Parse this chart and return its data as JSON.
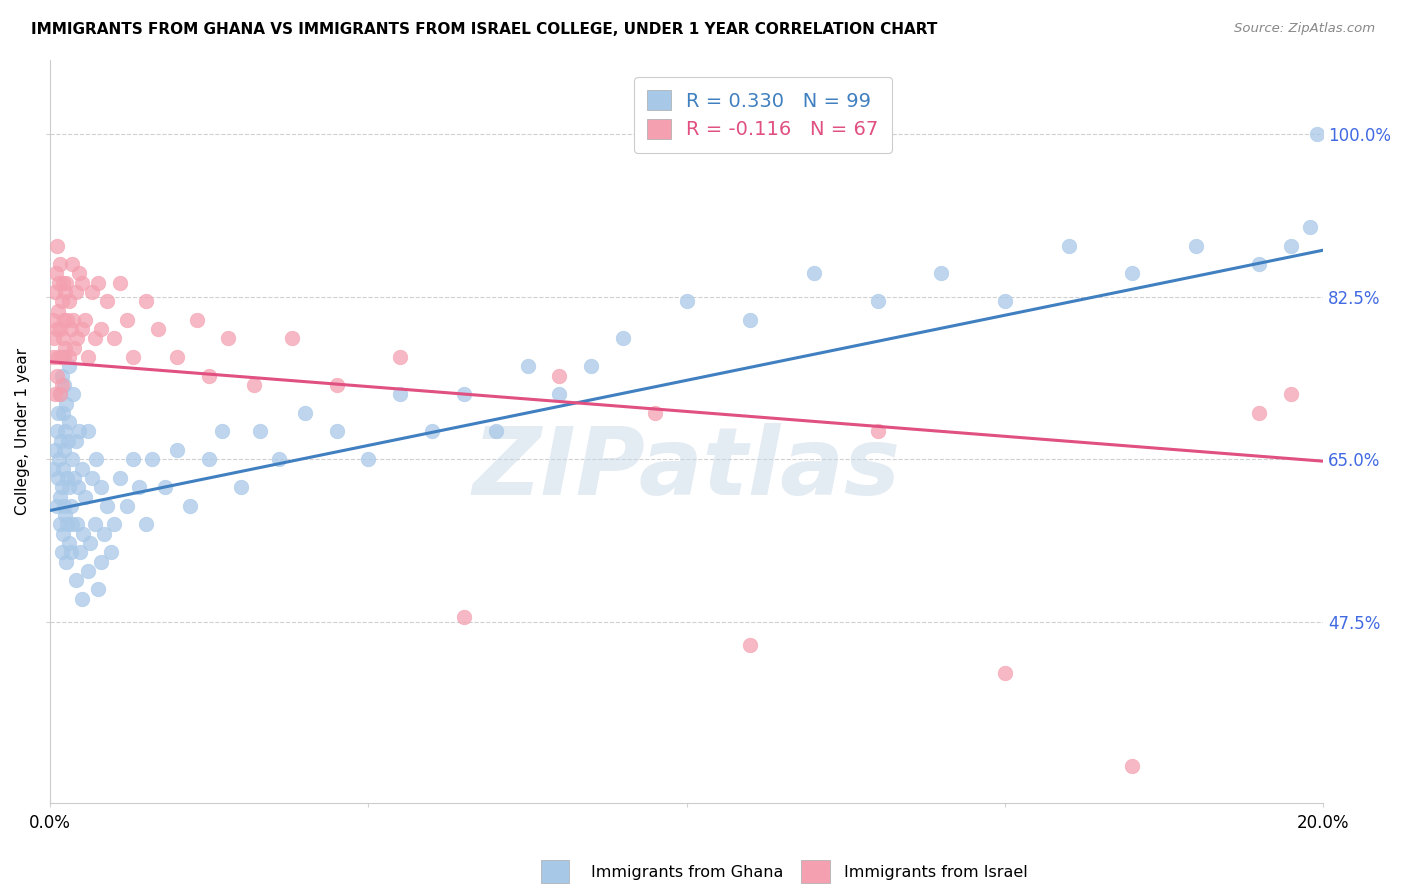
{
  "title": "IMMIGRANTS FROM GHANA VS IMMIGRANTS FROM ISRAEL COLLEGE, UNDER 1 YEAR CORRELATION CHART",
  "source": "Source: ZipAtlas.com",
  "ylabel": "College, Under 1 year",
  "xlim": [
    0.0,
    0.2
  ],
  "ylim": [
    0.28,
    1.08
  ],
  "ytick_values": [
    0.475,
    0.65,
    0.825,
    1.0
  ],
  "ytick_labels": [
    "47.5%",
    "65.0%",
    "82.5%",
    "100.0%"
  ],
  "ghana_color": "#a8c8e8",
  "israel_color": "#f4a0b0",
  "ghana_line_color": "#4080c0",
  "israel_line_color": "#e05080",
  "ghana_R": 0.33,
  "ghana_N": 99,
  "israel_R": -0.116,
  "israel_N": 67,
  "legend_label_ghana": "Immigrants from Ghana",
  "legend_label_israel": "Immigrants from Israel",
  "background_color": "#ffffff",
  "watermark": "ZIPatlas",
  "ghana_line_y0": 0.595,
  "ghana_line_y1": 0.875,
  "israel_line_y0": 0.755,
  "israel_line_y1": 0.648,
  "ghana_scatter_x": [
    0.0005,
    0.0008,
    0.001,
    0.001,
    0.0012,
    0.0013,
    0.0014,
    0.0015,
    0.0015,
    0.0016,
    0.0017,
    0.0018,
    0.0018,
    0.0019,
    0.002,
    0.002,
    0.002,
    0.002,
    0.0021,
    0.0022,
    0.0022,
    0.0023,
    0.0024,
    0.0025,
    0.0025,
    0.0026,
    0.0027,
    0.0028,
    0.003,
    0.003,
    0.003,
    0.003,
    0.0032,
    0.0033,
    0.0034,
    0.0035,
    0.0036,
    0.0038,
    0.004,
    0.004,
    0.0042,
    0.0043,
    0.0045,
    0.0047,
    0.005,
    0.005,
    0.0052,
    0.0055,
    0.006,
    0.006,
    0.0063,
    0.0065,
    0.007,
    0.0072,
    0.0075,
    0.008,
    0.008,
    0.0085,
    0.009,
    0.0095,
    0.01,
    0.011,
    0.012,
    0.013,
    0.014,
    0.015,
    0.016,
    0.018,
    0.02,
    0.022,
    0.025,
    0.027,
    0.03,
    0.033,
    0.036,
    0.04,
    0.045,
    0.05,
    0.055,
    0.06,
    0.065,
    0.07,
    0.075,
    0.08,
    0.085,
    0.09,
    0.1,
    0.11,
    0.12,
    0.13,
    0.14,
    0.15,
    0.16,
    0.17,
    0.18,
    0.19,
    0.195,
    0.198,
    0.199
  ],
  "ghana_scatter_y": [
    0.64,
    0.66,
    0.6,
    0.68,
    0.63,
    0.7,
    0.65,
    0.58,
    0.72,
    0.61,
    0.67,
    0.55,
    0.74,
    0.62,
    0.57,
    0.64,
    0.7,
    0.76,
    0.6,
    0.66,
    0.73,
    0.59,
    0.68,
    0.54,
    0.71,
    0.63,
    0.58,
    0.67,
    0.56,
    0.62,
    0.69,
    0.75,
    0.6,
    0.55,
    0.65,
    0.58,
    0.72,
    0.63,
    0.52,
    0.67,
    0.58,
    0.62,
    0.68,
    0.55,
    0.5,
    0.64,
    0.57,
    0.61,
    0.53,
    0.68,
    0.56,
    0.63,
    0.58,
    0.65,
    0.51,
    0.54,
    0.62,
    0.57,
    0.6,
    0.55,
    0.58,
    0.63,
    0.6,
    0.65,
    0.62,
    0.58,
    0.65,
    0.62,
    0.66,
    0.6,
    0.65,
    0.68,
    0.62,
    0.68,
    0.65,
    0.7,
    0.68,
    0.65,
    0.72,
    0.68,
    0.72,
    0.68,
    0.75,
    0.72,
    0.75,
    0.78,
    0.82,
    0.8,
    0.85,
    0.82,
    0.85,
    0.82,
    0.88,
    0.85,
    0.88,
    0.86,
    0.88,
    0.9,
    1.0
  ],
  "israel_scatter_x": [
    0.0004,
    0.0005,
    0.0006,
    0.0007,
    0.0008,
    0.0009,
    0.001,
    0.001,
    0.0011,
    0.0012,
    0.0013,
    0.0014,
    0.0015,
    0.0015,
    0.0016,
    0.0017,
    0.0018,
    0.0019,
    0.002,
    0.002,
    0.0021,
    0.0022,
    0.0023,
    0.0024,
    0.0025,
    0.0027,
    0.003,
    0.003,
    0.0032,
    0.0034,
    0.0036,
    0.0038,
    0.004,
    0.0042,
    0.0045,
    0.005,
    0.005,
    0.0055,
    0.006,
    0.0065,
    0.007,
    0.0075,
    0.008,
    0.009,
    0.01,
    0.011,
    0.012,
    0.013,
    0.015,
    0.017,
    0.02,
    0.023,
    0.025,
    0.028,
    0.032,
    0.038,
    0.045,
    0.055,
    0.065,
    0.08,
    0.095,
    0.11,
    0.13,
    0.15,
    0.17,
    0.19,
    0.195
  ],
  "israel_scatter_y": [
    0.76,
    0.8,
    0.78,
    0.83,
    0.72,
    0.85,
    0.79,
    0.88,
    0.74,
    0.81,
    0.76,
    0.84,
    0.72,
    0.79,
    0.86,
    0.76,
    0.82,
    0.73,
    0.78,
    0.84,
    0.8,
    0.76,
    0.83,
    0.77,
    0.84,
    0.8,
    0.76,
    0.82,
    0.79,
    0.86,
    0.8,
    0.77,
    0.83,
    0.78,
    0.85,
    0.79,
    0.84,
    0.8,
    0.76,
    0.83,
    0.78,
    0.84,
    0.79,
    0.82,
    0.78,
    0.84,
    0.8,
    0.76,
    0.82,
    0.79,
    0.76,
    0.8,
    0.74,
    0.78,
    0.73,
    0.78,
    0.73,
    0.76,
    0.48,
    0.74,
    0.7,
    0.45,
    0.68,
    0.42,
    0.32,
    0.7,
    0.72
  ]
}
